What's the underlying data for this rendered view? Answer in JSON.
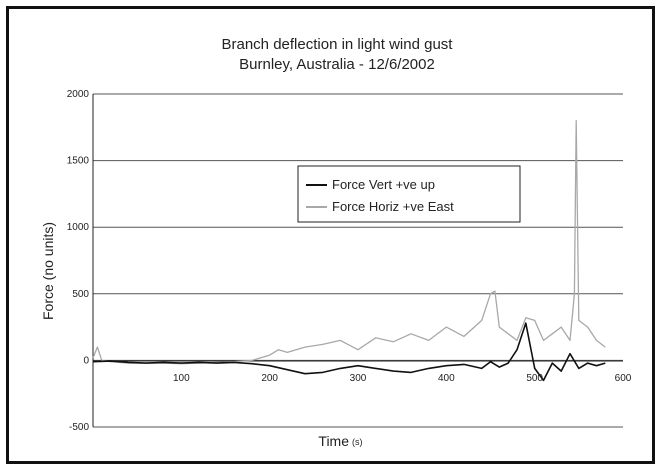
{
  "chart_data": {
    "type": "line",
    "title": "Branch deflection in light wind gust",
    "subtitle": "Burnley, Australia - 12/6/2002",
    "xlabel": "Time",
    "xunit": "(s)",
    "ylabel": "Force (no units)",
    "xlim": [
      0,
      600
    ],
    "ylim": [
      -500,
      2000
    ],
    "xticks": [
      "100",
      "200",
      "300",
      "400",
      "500",
      "600"
    ],
    "yticks": [
      "-500",
      "0",
      "500",
      "1000",
      "1500",
      "2000"
    ],
    "grid": "horizontal",
    "legend_position": "upper-middle-right",
    "series": [
      {
        "name": "Force Vert +ve up",
        "color": "#111111",
        "x": [
          0,
          20,
          40,
          60,
          80,
          100,
          120,
          140,
          160,
          180,
          200,
          220,
          240,
          260,
          280,
          300,
          320,
          340,
          360,
          380,
          400,
          420,
          440,
          450,
          460,
          470,
          480,
          490,
          500,
          510,
          520,
          530,
          540,
          550,
          560,
          570,
          580
        ],
        "y": [
          -10,
          -5,
          -15,
          -20,
          -15,
          -20,
          -15,
          -20,
          -15,
          -25,
          -40,
          -70,
          -100,
          -90,
          -60,
          -40,
          -60,
          -80,
          -90,
          -60,
          -40,
          -30,
          -60,
          -10,
          -50,
          -20,
          80,
          280,
          -60,
          -150,
          -20,
          -80,
          50,
          -60,
          -20,
          -40,
          -20
        ]
      },
      {
        "name": "Force Horiz +ve East",
        "color": "#a8a8a8",
        "x": [
          0,
          5,
          10,
          20,
          40,
          60,
          80,
          100,
          120,
          140,
          160,
          180,
          200,
          210,
          220,
          240,
          260,
          280,
          300,
          320,
          340,
          360,
          380,
          400,
          420,
          440,
          450,
          455,
          460,
          470,
          480,
          490,
          500,
          510,
          520,
          530,
          540,
          545,
          547,
          550,
          560,
          570,
          580
        ],
        "y": [
          20,
          100,
          0,
          -10,
          -20,
          -20,
          -20,
          -25,
          -20,
          -15,
          -10,
          0,
          40,
          80,
          60,
          100,
          120,
          150,
          80,
          170,
          140,
          200,
          150,
          250,
          180,
          300,
          500,
          520,
          250,
          200,
          150,
          320,
          300,
          150,
          200,
          250,
          150,
          500,
          1800,
          300,
          250,
          150,
          100
        ]
      }
    ]
  }
}
